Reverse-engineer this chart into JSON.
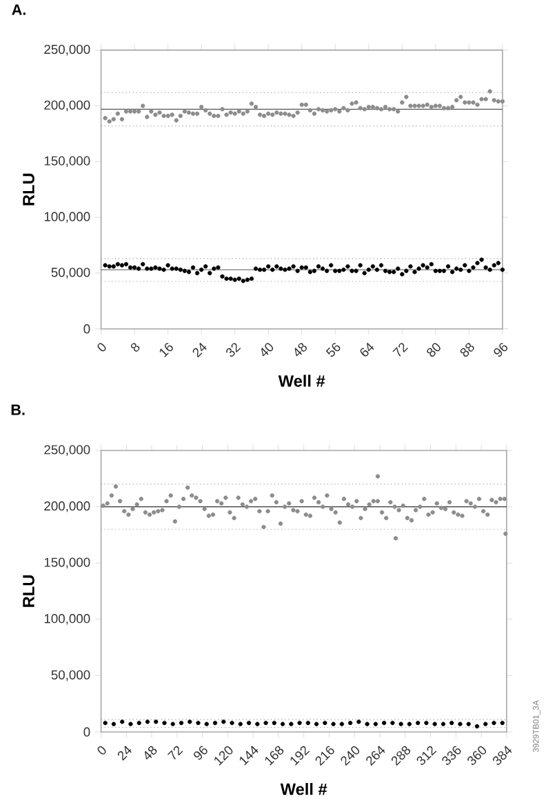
{
  "chart_data": [
    {
      "type": "scatter",
      "title": "A.",
      "xlabel": "Well #",
      "ylabel": "RLU",
      "marker": "circle",
      "xlim": [
        0,
        96
      ],
      "ylim": [
        0,
        250000
      ],
      "xticks": [
        0,
        8,
        16,
        24,
        32,
        40,
        48,
        56,
        64,
        72,
        80,
        88,
        96
      ],
      "yticks": [
        {
          "value": 0,
          "label": "0"
        },
        {
          "value": 50000,
          "label": "50,000"
        },
        {
          "value": 100000,
          "label": "100,000"
        },
        {
          "value": 150000,
          "label": "150,000"
        },
        {
          "value": 200000,
          "label": "200,000"
        },
        {
          "value": 250000,
          "label": "250,000"
        }
      ],
      "series": [
        {
          "color": "#8c8c8c",
          "x": [
            1,
            2,
            3,
            4,
            5,
            6,
            7,
            8,
            9,
            10,
            11,
            12,
            13,
            14,
            15,
            16,
            17,
            18,
            19,
            20,
            21,
            22,
            23,
            24,
            25,
            26,
            27,
            28,
            29,
            30,
            31,
            32,
            33,
            34,
            35,
            36,
            37,
            38,
            39,
            40,
            41,
            42,
            43,
            44,
            45,
            46,
            47,
            48,
            49,
            50,
            51,
            52,
            53,
            54,
            55,
            56,
            57,
            58,
            59,
            60,
            61,
            62,
            63,
            64,
            65,
            66,
            67,
            68,
            69,
            70,
            71,
            72,
            73,
            74,
            75,
            76,
            77,
            78,
            79,
            80,
            81,
            82,
            83,
            84,
            85,
            86,
            87,
            88,
            89,
            90,
            91,
            92,
            93,
            94,
            95,
            96
          ],
          "values": [
            189000,
            186000,
            188000,
            193000,
            188000,
            195000,
            195000,
            195000,
            195000,
            200000,
            190000,
            195000,
            192000,
            194000,
            191000,
            191000,
            192000,
            187000,
            191000,
            195000,
            194000,
            193000,
            193000,
            199000,
            196000,
            193000,
            191000,
            191000,
            197000,
            192000,
            194000,
            193000,
            195000,
            193000,
            195000,
            202000,
            199000,
            192000,
            191000,
            193000,
            192000,
            194000,
            193000,
            193000,
            192000,
            191000,
            194000,
            201000,
            201000,
            196000,
            193000,
            197000,
            196000,
            195000,
            196000,
            197000,
            195000,
            198000,
            196000,
            202000,
            203000,
            198000,
            197000,
            199000,
            199000,
            198000,
            197000,
            199000,
            197000,
            197000,
            195000,
            203000,
            208000,
            200000,
            200000,
            200000,
            200000,
            201000,
            199000,
            200000,
            200000,
            198000,
            198000,
            199000,
            205000,
            208000,
            203000,
            203000,
            203000,
            201000,
            206000,
            206000,
            213000,
            205000,
            204000,
            204000
          ]
        },
        {
          "color": "#000000",
          "x": [
            1,
            2,
            3,
            4,
            5,
            6,
            7,
            8,
            9,
            10,
            11,
            12,
            13,
            14,
            15,
            16,
            17,
            18,
            19,
            20,
            21,
            22,
            23,
            24,
            25,
            26,
            27,
            28,
            29,
            30,
            31,
            32,
            33,
            34,
            35,
            36,
            37,
            38,
            39,
            40,
            41,
            42,
            43,
            44,
            45,
            46,
            47,
            48,
            49,
            50,
            51,
            52,
            53,
            54,
            55,
            56,
            57,
            58,
            59,
            60,
            61,
            62,
            63,
            64,
            65,
            66,
            67,
            68,
            69,
            70,
            71,
            72,
            73,
            74,
            75,
            76,
            77,
            78,
            79,
            80,
            81,
            82,
            83,
            84,
            85,
            86,
            87,
            88,
            89,
            90,
            91,
            92,
            93,
            94,
            95,
            96
          ],
          "values": [
            57000,
            56000,
            56000,
            58000,
            57000,
            58000,
            55000,
            55000,
            54000,
            58000,
            54000,
            54000,
            55000,
            54000,
            53000,
            57000,
            54000,
            54000,
            53000,
            52000,
            51000,
            55000,
            50000,
            53000,
            56000,
            50000,
            54000,
            55000,
            47000,
            45000,
            45000,
            44000,
            45000,
            43000,
            44000,
            45000,
            54000,
            53000,
            53000,
            56000,
            53000,
            56000,
            54000,
            53000,
            54000,
            56000,
            52000,
            55000,
            55000,
            51000,
            52000,
            56000,
            54000,
            52000,
            57000,
            52000,
            52000,
            53000,
            56000,
            52000,
            52000,
            57000,
            50000,
            53000,
            56000,
            53000,
            57000,
            52000,
            51000,
            51000,
            54000,
            49000,
            52000,
            56000,
            51000,
            54000,
            57000,
            55000,
            58000,
            52000,
            52000,
            52000,
            56000,
            51000,
            54000,
            53000,
            57000,
            52000,
            55000,
            59000,
            62000,
            55000,
            53000,
            57000,
            59000,
            53000
          ]
        }
      ],
      "ref_lines": [
        {
          "axis": "y",
          "value": 197000,
          "color": "#555555",
          "line_style": "solid"
        },
        {
          "axis": "y",
          "value": 212000,
          "color": "#999999",
          "line_style": "dotted"
        },
        {
          "axis": "y",
          "value": 182000,
          "color": "#999999",
          "line_style": "dotted"
        },
        {
          "axis": "y",
          "value": 53000,
          "color": "#555555",
          "line_style": "solid"
        },
        {
          "axis": "y",
          "value": 63000,
          "color": "#999999",
          "line_style": "dotted"
        },
        {
          "axis": "y",
          "value": 42500,
          "color": "#999999",
          "line_style": "dotted"
        }
      ]
    },
    {
      "type": "scatter",
      "title": "B.",
      "xlabel": "Well #",
      "ylabel": "RLU",
      "marker": "circle",
      "xlim": [
        0,
        384
      ],
      "ylim": [
        0,
        250000
      ],
      "xticks": [
        0,
        24,
        48,
        72,
        96,
        120,
        144,
        168,
        192,
        216,
        240,
        264,
        288,
        312,
        336,
        360,
        384
      ],
      "yticks": [
        {
          "value": 0,
          "label": "0"
        },
        {
          "value": 50000,
          "label": "50,000"
        },
        {
          "value": 100000,
          "label": "100,000"
        },
        {
          "value": 150000,
          "label": "150,000"
        },
        {
          "value": 200000,
          "label": "200,000"
        },
        {
          "value": 250000,
          "label": "250,000"
        }
      ],
      "series": [
        {
          "color": "#8c8c8c",
          "x": [
            2,
            6,
            10,
            14,
            18,
            22,
            26,
            30,
            34,
            38,
            42,
            46,
            50,
            54,
            58,
            62,
            66,
            70,
            74,
            78,
            82,
            86,
            90,
            94,
            98,
            102,
            106,
            110,
            114,
            118,
            122,
            126,
            130,
            134,
            138,
            142,
            146,
            150,
            154,
            158,
            162,
            166,
            170,
            174,
            178,
            182,
            186,
            190,
            194,
            198,
            202,
            206,
            210,
            214,
            218,
            222,
            226,
            230,
            234,
            238,
            242,
            246,
            250,
            254,
            258,
            262,
            266,
            270,
            274,
            278,
            282,
            286,
            290,
            294,
            298,
            302,
            306,
            310,
            314,
            318,
            322,
            326,
            330,
            334,
            338,
            342,
            346,
            350,
            354,
            358,
            362,
            366,
            370,
            374,
            378,
            382,
            262,
            279,
            383
          ],
          "values": [
            201000,
            203000,
            210000,
            218000,
            205000,
            196000,
            193000,
            198000,
            202000,
            207000,
            195000,
            193000,
            195000,
            196000,
            197000,
            205000,
            210000,
            187000,
            200000,
            207000,
            217000,
            210000,
            208000,
            205000,
            198000,
            192000,
            193000,
            205000,
            203000,
            208000,
            195000,
            190000,
            208000,
            202000,
            200000,
            205000,
            207000,
            196000,
            182000,
            196000,
            210000,
            204000,
            185000,
            200000,
            203000,
            197000,
            196000,
            205000,
            193000,
            192000,
            208000,
            204000,
            200000,
            210000,
            198000,
            195000,
            186000,
            207000,
            202000,
            200000,
            205000,
            190000,
            198000,
            202000,
            205000,
            205000,
            195000,
            190000,
            204000,
            200000,
            197000,
            201000,
            190000,
            188000,
            197000,
            200000,
            207000,
            193000,
            195000,
            203000,
            199000,
            198000,
            204000,
            195000,
            193000,
            192000,
            205000,
            203000,
            200000,
            207000,
            196000,
            193000,
            206000,
            204000,
            207000,
            207000,
            227000,
            172000,
            176000
          ]
        },
        {
          "color": "#000000",
          "x": [
            4,
            12,
            20,
            28,
            36,
            44,
            52,
            60,
            68,
            76,
            84,
            92,
            100,
            108,
            116,
            124,
            132,
            140,
            148,
            156,
            164,
            172,
            180,
            188,
            196,
            204,
            212,
            220,
            228,
            236,
            244,
            252,
            260,
            268,
            276,
            284,
            292,
            300,
            308,
            316,
            324,
            332,
            340,
            348,
            356,
            364,
            372,
            380
          ],
          "values": [
            8000,
            7000,
            9000,
            7000,
            8000,
            9000,
            9000,
            8000,
            7000,
            8000,
            9000,
            8000,
            7000,
            8000,
            9000,
            8000,
            7000,
            8000,
            7000,
            8000,
            8000,
            7000,
            7000,
            8000,
            8000,
            7000,
            8000,
            7000,
            7000,
            8000,
            9000,
            7000,
            7000,
            8000,
            8000,
            7000,
            7000,
            8000,
            8000,
            7000,
            7000,
            8000,
            7000,
            7000,
            5000,
            7000,
            8000,
            8000
          ]
        }
      ],
      "ref_lines": [
        {
          "axis": "y",
          "value": 200000,
          "color": "#333333",
          "line_style": "solid"
        },
        {
          "axis": "y",
          "value": 220000,
          "color": "#999999",
          "line_style": "dotted"
        },
        {
          "axis": "y",
          "value": 180000,
          "color": "#999999",
          "line_style": "dotted"
        },
        {
          "axis": "y",
          "value": 11000,
          "color": "#999999",
          "line_style": "dotted"
        },
        {
          "axis": "y",
          "value": 4000,
          "color": "#999999",
          "line_style": "dotted"
        }
      ],
      "annotations": [
        "3929TB01_3A"
      ]
    }
  ]
}
